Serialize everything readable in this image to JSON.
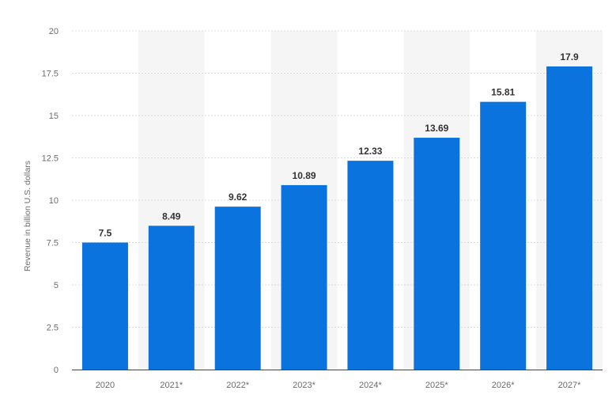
{
  "chart_data": {
    "type": "bar",
    "categories": [
      "2020",
      "2021*",
      "2022*",
      "2023*",
      "2024*",
      "2025*",
      "2026*",
      "2027*"
    ],
    "values": [
      7.5,
      8.49,
      9.62,
      10.89,
      12.33,
      13.69,
      15.81,
      17.9
    ],
    "value_labels": [
      "7.5",
      "8.49",
      "9.62",
      "10.89",
      "12.33",
      "13.69",
      "15.81",
      "17.9"
    ],
    "title": "",
    "xlabel": "",
    "ylabel": "Revenue in billion U.S. dollars",
    "ylim": [
      0,
      20
    ],
    "yticks": [
      "0",
      "2.5",
      "5",
      "7.5",
      "10",
      "12.5",
      "15",
      "17.5",
      "20"
    ],
    "grid": true,
    "bar_color": "#0a73dd",
    "band_color": "#f5f5f5"
  }
}
